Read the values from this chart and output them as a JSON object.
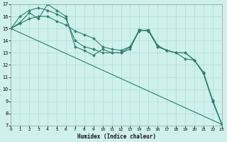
{
  "xlabel": "Humidex (Indice chaleur)",
  "bg_color": "#cff0ec",
  "grid_color": "#aaddda",
  "line_color": "#2e7d72",
  "xlim": [
    0,
    23
  ],
  "ylim": [
    7,
    17
  ],
  "yticks": [
    7,
    8,
    9,
    10,
    11,
    12,
    13,
    14,
    15,
    16,
    17
  ],
  "xticks": [
    0,
    1,
    2,
    3,
    4,
    5,
    6,
    7,
    8,
    9,
    10,
    11,
    12,
    13,
    14,
    15,
    16,
    17,
    18,
    19,
    20,
    21,
    22,
    23
  ],
  "series": [
    {
      "x": [
        0,
        1,
        2,
        3,
        4,
        5,
        6,
        7,
        8,
        9,
        10,
        11,
        12,
        13,
        14,
        15,
        16,
        17,
        18,
        19,
        20,
        21,
        22,
        23
      ],
      "y": [
        15.0,
        16.0,
        16.5,
        16.7,
        16.5,
        16.2,
        15.8,
        14.0,
        13.5,
        13.3,
        13.0,
        13.0,
        13.0,
        13.3,
        14.9,
        14.8,
        13.5,
        13.2,
        13.0,
        13.0,
        12.4,
        11.3,
        9.0,
        7.1
      ]
    },
    {
      "x": [
        0,
        1,
        2,
        3,
        4,
        5,
        6,
        7,
        8,
        9,
        10,
        11,
        12,
        13,
        14,
        15,
        16,
        17,
        18,
        19,
        20,
        21,
        22,
        23
      ],
      "y": [
        15.0,
        15.5,
        16.3,
        15.8,
        17.0,
        16.5,
        16.0,
        13.5,
        13.2,
        12.8,
        13.3,
        13.0,
        13.0,
        13.5,
        14.9,
        14.8,
        13.5,
        13.2,
        13.0,
        13.0,
        12.4,
        11.3,
        9.0,
        7.1
      ]
    },
    {
      "x": [
        0,
        1,
        2,
        3,
        4,
        5,
        6,
        7,
        8,
        9,
        10,
        11,
        12,
        13,
        14,
        15,
        16,
        17,
        18,
        19,
        20,
        21,
        22,
        23
      ],
      "y": [
        15.0,
        15.4,
        15.8,
        16.0,
        16.0,
        15.6,
        15.3,
        14.8,
        14.5,
        14.2,
        13.5,
        13.3,
        13.2,
        13.5,
        14.8,
        14.9,
        13.6,
        13.2,
        13.0,
        12.5,
        12.4,
        11.4,
        9.1,
        7.1
      ]
    },
    {
      "x": [
        0,
        23
      ],
      "y": [
        15.0,
        7.1
      ]
    }
  ]
}
